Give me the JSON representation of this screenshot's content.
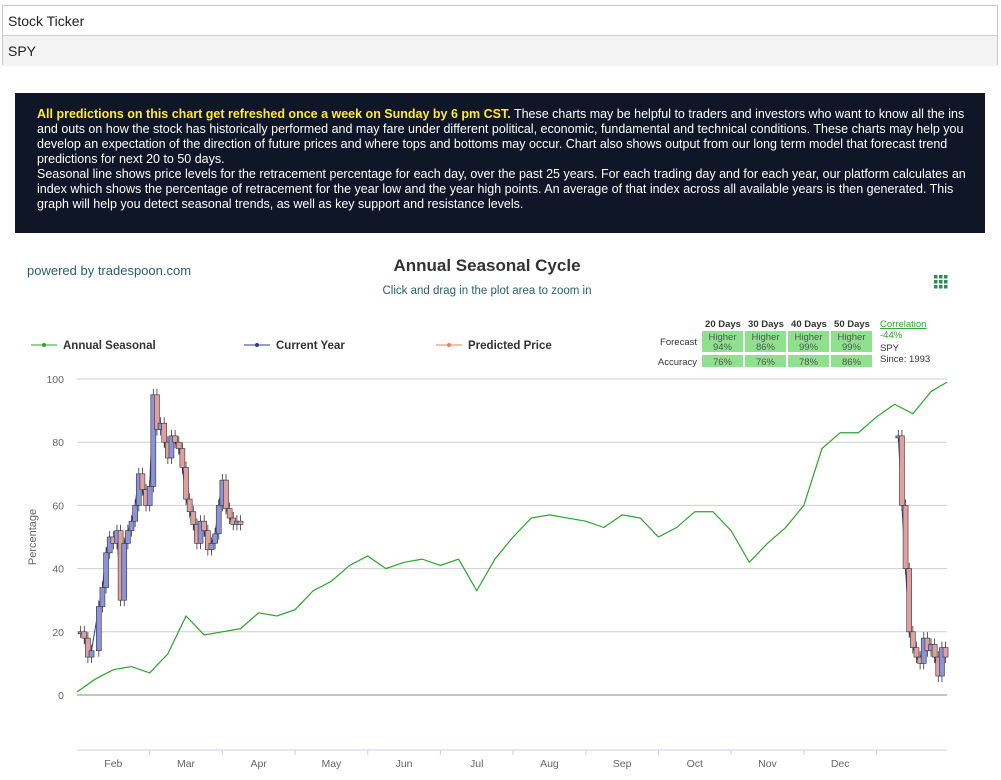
{
  "ticker": {
    "label": "Stock Ticker",
    "value": "SPY"
  },
  "banner": {
    "highlight": "All predictions on this chart get refreshed once a week on Sunday by 6 pm CST.",
    "text1": " These charts may be helpful to traders and investors who want to know all the ins and outs on how the stock has historically performed and may fare under different political, economic, fundamental and technical conditions. These charts may help you develop an expectation of the direction of future prices and where tops and bottoms may occur. Chart also shows output from our long term model that forecast trend predictions for next 20 to 50 days.",
    "text2": "Seasonal line shows price levels for the retracement percentage for each day, over the past 25 years. For each trading day and for each year, our platform calculates an index which shows the percentage of retracement for the year low and the year high points. An average of that index across all available years is then generated. This graph will help you detect seasonal trends, as well as key support and resistance levels."
  },
  "powered_by": "powered by tradespoon.com",
  "forecast_table": {
    "headers": [
      "20 Days",
      "30 Days",
      "40 Days",
      "50 Days"
    ],
    "forecast_label": "Forecast",
    "accuracy_label": "Accuracy",
    "forecast_dir": [
      "Higher",
      "Higher",
      "Higher",
      "Higher"
    ],
    "forecast_pct": [
      "94%",
      "86%",
      "99%",
      "99%"
    ],
    "accuracy": [
      "76%",
      "76%",
      "78%",
      "86%"
    ],
    "correlation_label": "Correlation",
    "correlation_value": "-44%",
    "symbol": "SPY",
    "since": "Since: 1993",
    "cell_color": "#8fe08f"
  },
  "colors": {
    "seasonal": "#2aa52a",
    "current": "#2a3ba8",
    "predicted": "#e8825a",
    "candle_up": "#8d93d8",
    "candle_down": "#e0a0a0"
  },
  "chart_data": {
    "type": "line",
    "title": "Annual Seasonal Cycle",
    "subtitle": "Click and drag in the plot area to zoom in",
    "ylabel": "Percentage",
    "xlabel": "",
    "ylim": [
      0,
      100
    ],
    "yticks": [
      0,
      20,
      40,
      60,
      80,
      100
    ],
    "x_month_labels": [
      "Feb",
      "Mar",
      "Apr",
      "May",
      "Jun",
      "Jul",
      "Aug",
      "Sep",
      "Oct",
      "Nov",
      "Dec"
    ],
    "x_month_pos": [
      1,
      2,
      3,
      4,
      5,
      6,
      7,
      8,
      9,
      10,
      11
    ],
    "xlim": [
      0,
      11.97
    ],
    "legend": [
      "Annual Seasonal",
      "Current Year",
      "Predicted Price"
    ],
    "legend_position": "top",
    "grid": true,
    "series": [
      {
        "name": "Annual Seasonal",
        "x": [
          0,
          0.25,
          0.5,
          0.75,
          1.0,
          1.25,
          1.5,
          1.75,
          2.0,
          2.25,
          2.5,
          2.75,
          3.0,
          3.25,
          3.5,
          3.75,
          4.0,
          4.25,
          4.5,
          4.75,
          5.0,
          5.25,
          5.5,
          5.75,
          6.0,
          6.25,
          6.5,
          6.75,
          7.0,
          7.25,
          7.5,
          7.75,
          8.0,
          8.25,
          8.5,
          8.75,
          9.0,
          9.25,
          9.5,
          9.75,
          10.0,
          10.25,
          10.5,
          10.75,
          11.0,
          11.25,
          11.5,
          11.75,
          11.97
        ],
        "values": [
          1,
          5,
          8,
          9,
          7,
          13,
          25,
          19,
          20,
          21,
          26,
          25,
          27,
          33,
          36,
          41,
          44,
          40,
          42,
          43,
          41,
          43,
          33,
          43,
          50,
          56,
          57,
          56,
          55,
          53,
          57,
          56,
          50,
          53,
          58,
          58,
          52,
          42,
          48,
          53,
          60,
          78,
          83,
          83,
          88,
          92,
          89,
          96,
          99
        ]
      },
      {
        "name": "Current Year",
        "x": [
          0.05,
          0.1,
          0.15,
          0.2,
          0.3,
          0.35,
          0.4,
          0.45,
          0.5,
          0.55,
          0.6,
          0.65,
          0.7,
          0.75,
          0.8,
          0.85,
          0.9,
          0.95,
          1.0,
          1.05,
          1.1,
          1.15,
          1.2,
          1.25,
          1.3,
          1.35,
          1.4,
          1.45,
          1.5,
          1.55,
          1.6,
          1.65,
          1.7,
          1.75,
          1.8,
          1.85,
          1.9,
          1.95,
          2.0,
          2.05,
          2.1,
          2.15,
          2.2,
          2.25
        ],
        "values": [
          20,
          18,
          12,
          14,
          28,
          34,
          45,
          50,
          48,
          52,
          30,
          48,
          52,
          55,
          60,
          70,
          65,
          60,
          66,
          95,
          84,
          86,
          80,
          75,
          82,
          80,
          78,
          72,
          62,
          58,
          54,
          48,
          55,
          52,
          46,
          48,
          51,
          60,
          68,
          59,
          56,
          54,
          55,
          54
        ]
      },
      {
        "name": "Current Year (Dec)",
        "x": [
          11.3,
          11.35,
          11.4,
          11.45,
          11.5,
          11.55,
          11.6,
          11.65,
          11.7,
          11.75,
          11.8,
          11.85,
          11.9,
          11.95
        ],
        "values": [
          82,
          60,
          40,
          20,
          15,
          12,
          10,
          18,
          14,
          16,
          12,
          6,
          15,
          12
        ]
      }
    ]
  }
}
